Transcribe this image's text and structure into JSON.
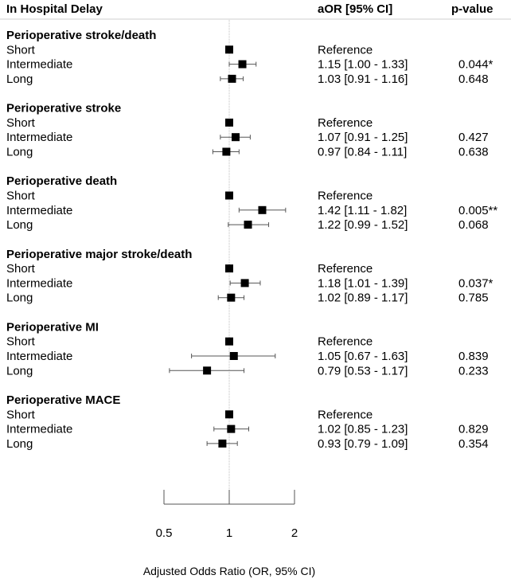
{
  "header": {
    "col1": "In Hospital Delay",
    "col2": "aOR  [95% CI]",
    "col3": "p-value"
  },
  "chart_data": {
    "type": "forest",
    "reference_line": 1,
    "x_axis": {
      "scale": "log",
      "range": [
        0.5,
        2
      ],
      "ticks": [
        "0.5",
        "1",
        "2"
      ],
      "tick_values": [
        0.5,
        1,
        2
      ],
      "label": "Adjusted Odds Ratio (OR, 95% CI)"
    },
    "groups": [
      {
        "name": "Perioperative stroke/death",
        "rows": [
          {
            "label": "Short",
            "or": 1,
            "lo": null,
            "hi": null,
            "text": "Reference",
            "p": ""
          },
          {
            "label": "Intermediate",
            "or": 1.15,
            "lo": 1.0,
            "hi": 1.33,
            "text": "1.15 [1.00 - 1.33]",
            "p": "0.044*"
          },
          {
            "label": "Long",
            "or": 1.03,
            "lo": 0.91,
            "hi": 1.16,
            "text": "1.03 [0.91 - 1.16]",
            "p": "0.648"
          }
        ]
      },
      {
        "name": "Perioperative stroke",
        "rows": [
          {
            "label": "Short",
            "or": 1,
            "lo": null,
            "hi": null,
            "text": "Reference",
            "p": ""
          },
          {
            "label": "Intermediate",
            "or": 1.07,
            "lo": 0.91,
            "hi": 1.25,
            "text": "1.07 [0.91 - 1.25]",
            "p": "0.427"
          },
          {
            "label": "Long",
            "or": 0.97,
            "lo": 0.84,
            "hi": 1.11,
            "text": "0.97 [0.84 - 1.11]",
            "p": "0.638"
          }
        ]
      },
      {
        "name": "Perioperative death",
        "rows": [
          {
            "label": "Short",
            "or": 1,
            "lo": null,
            "hi": null,
            "text": "Reference",
            "p": ""
          },
          {
            "label": "Intermediate",
            "or": 1.42,
            "lo": 1.11,
            "hi": 1.82,
            "text": "1.42 [1.11 - 1.82]",
            "p": "0.005**"
          },
          {
            "label": "Long",
            "or": 1.22,
            "lo": 0.99,
            "hi": 1.52,
            "text": "1.22 [0.99 - 1.52]",
            "p": "0.068"
          }
        ]
      },
      {
        "name": "Perioperative major stroke/death",
        "rows": [
          {
            "label": "Short",
            "or": 1,
            "lo": null,
            "hi": null,
            "text": "Reference",
            "p": ""
          },
          {
            "label": "Intermediate",
            "or": 1.18,
            "lo": 1.01,
            "hi": 1.39,
            "text": "1.18 [1.01 - 1.39]",
            "p": "0.037*"
          },
          {
            "label": "Long",
            "or": 1.02,
            "lo": 0.89,
            "hi": 1.17,
            "text": "1.02 [0.89 - 1.17]",
            "p": "0.785"
          }
        ]
      },
      {
        "name": "Perioperative MI",
        "rows": [
          {
            "label": "Short",
            "or": 1,
            "lo": null,
            "hi": null,
            "text": "Reference",
            "p": ""
          },
          {
            "label": "Intermediate",
            "or": 1.05,
            "lo": 0.67,
            "hi": 1.63,
            "text": "1.05 [0.67 - 1.63]",
            "p": "0.839"
          },
          {
            "label": "Long",
            "or": 0.79,
            "lo": 0.53,
            "hi": 1.17,
            "text": "0.79 [0.53 - 1.17]",
            "p": "0.233"
          }
        ]
      },
      {
        "name": "Perioperative MACE",
        "rows": [
          {
            "label": "Short",
            "or": 1,
            "lo": null,
            "hi": null,
            "text": "Reference",
            "p": ""
          },
          {
            "label": "Intermediate",
            "or": 1.02,
            "lo": 0.85,
            "hi": 1.23,
            "text": "1.02 [0.85 - 1.23]",
            "p": "0.829"
          },
          {
            "label": "Long",
            "or": 0.93,
            "lo": 0.79,
            "hi": 1.09,
            "text": "0.93 [0.79 - 1.09]",
            "p": "0.354"
          }
        ]
      }
    ]
  }
}
